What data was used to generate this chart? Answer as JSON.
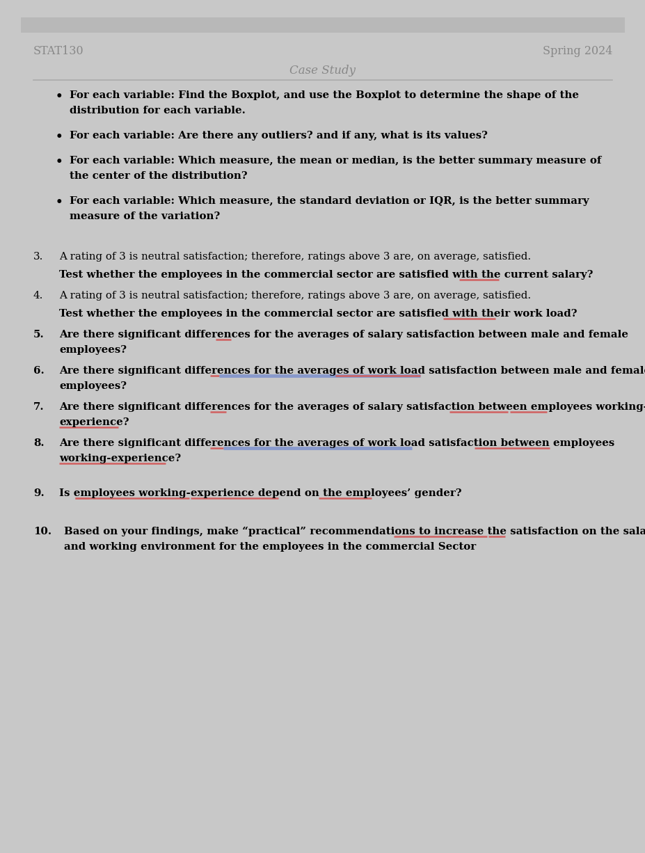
{
  "header_left": "STAT130",
  "header_right": "Spring 2024",
  "title": "Case Study",
  "header_color": "#888888",
  "title_color": "#888888",
  "bg_color": "#ffffff",
  "page_bg": "#c8c8c8",
  "text_color": "#000000",
  "line_color": "#aaaaaa",
  "underline_red": "#d06060",
  "underline_blue": "#8899cc",
  "figw": 9.28,
  "figh": 12.26,
  "dpi": 100
}
